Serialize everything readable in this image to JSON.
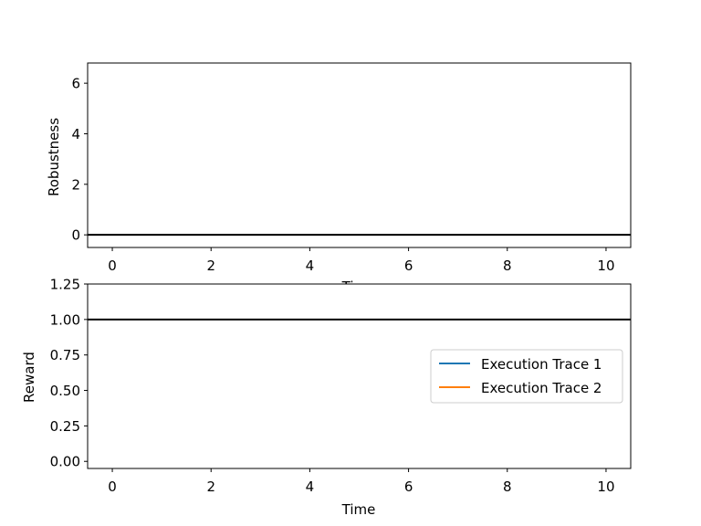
{
  "chart_data": [
    {
      "type": "line",
      "xlabel": "Time",
      "ylabel": "Robustness",
      "xlim": [
        -0.5,
        10.5
      ],
      "ylim": [
        -0.5,
        6.8
      ],
      "xticks": [
        0,
        2,
        4,
        6,
        8,
        10
      ],
      "yticks": [
        0,
        2,
        4,
        6
      ],
      "series": [],
      "reference_lines": [
        {
          "y": 0,
          "color": "#000000"
        }
      ],
      "grid": false,
      "legend": null
    },
    {
      "type": "line",
      "xlabel": "Time",
      "ylabel": "Reward",
      "xlim": [
        -0.5,
        10.5
      ],
      "ylim": [
        -0.05,
        1.25
      ],
      "xticks": [
        0,
        2,
        4,
        6,
        8,
        10
      ],
      "yticks": [
        0.0,
        0.25,
        0.5,
        0.75,
        1.0,
        1.25
      ],
      "ytick_format": 2,
      "series": [
        {
          "name": "Execution Trace 1",
          "color": "#1f77b4",
          "x": [],
          "y": []
        },
        {
          "name": "Execution Trace 2",
          "color": "#ff7f0e",
          "x": [],
          "y": []
        }
      ],
      "reference_lines": [
        {
          "y": 1.0,
          "color": "#000000"
        }
      ],
      "grid": false,
      "legend": "center-right"
    }
  ]
}
